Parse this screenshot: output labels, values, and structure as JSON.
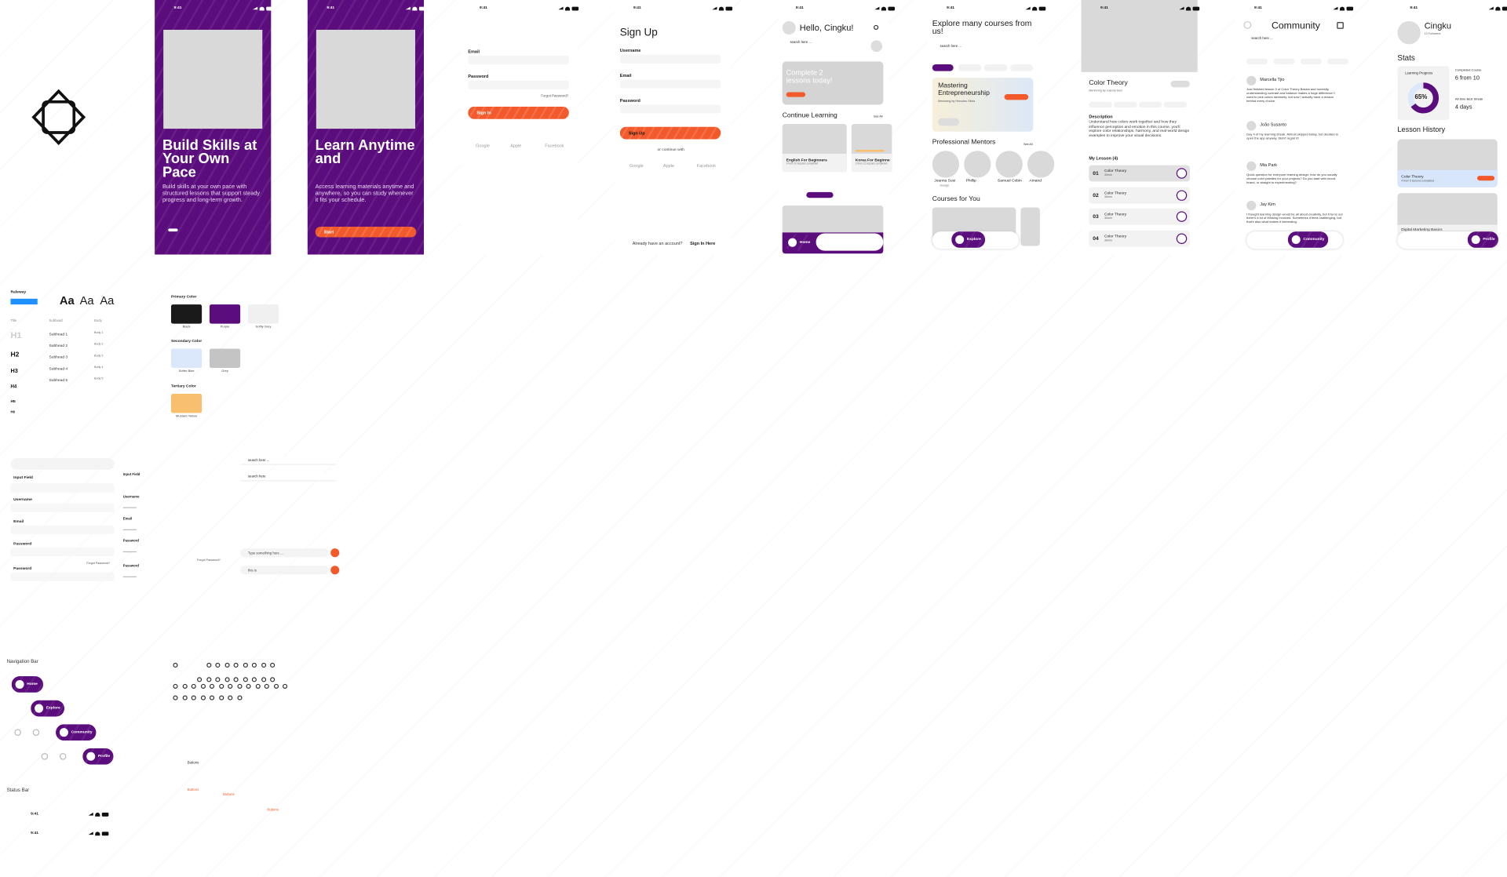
{
  "onboarding": [
    {
      "time": "9:41",
      "title": "Build Skills at Your Own Pace",
      "body": "Build skills at your own pace with structured lessons that support steady progress and long-term growth."
    },
    {
      "time": "9:41",
      "title": "Learn Anytime and",
      "body": "Access learning materials anytime and anywhere, so you can study whenever it fits your schedule.",
      "button": "Start"
    }
  ],
  "sign_in": {
    "time": "9:41",
    "email": "Email",
    "password": "Password",
    "forgot": "Forgot Password?",
    "button": "Sign In",
    "socials": [
      "Google",
      "Apple",
      "Facebook"
    ]
  },
  "sign_up": {
    "time": "9:41",
    "title": "Sign Up",
    "fields": [
      "Username",
      "Email",
      "Password"
    ],
    "button": "Sign Up",
    "divider": "or continue with",
    "socials": [
      "Google",
      "Apple",
      "Facebook"
    ],
    "footer": "Already have an account?",
    "footer_link": "Sign In Here"
  },
  "home": {
    "time": "9:41",
    "greeting": "Hello, Cingku!",
    "search": "search here ...",
    "banner": "Complete 2 lessons today!",
    "section": "Continue Learning",
    "see_all": "See All",
    "courses": [
      {
        "title": "English For Beginners",
        "meta": "3 from 10 lessons completed"
      },
      {
        "title": "Korea For Beginne",
        "meta": "2 from 12 lessons completed"
      }
    ],
    "nav": "Home"
  },
  "explore": {
    "time": "9:41",
    "title": "Explore many courses from us!",
    "search": "search here ...",
    "featured_title": "Mastering Entrepreneurship",
    "featured_meta": "Mentoring by Hercules Olivia",
    "mentors_title": "Professional Mentors",
    "see_all": "See All",
    "mentors": [
      {
        "name": "Joanna Susi",
        "role": "Design"
      },
      {
        "name": "Phillip"
      },
      {
        "name": "Samuel Cobin"
      },
      {
        "name": "Amand"
      }
    ],
    "courses_title": "Courses for You",
    "nav": "Explore"
  },
  "course": {
    "time": "9:41",
    "title": "Color Theory",
    "mentor": "Mentoring by Joanna Susi",
    "description_title": "Description",
    "description": "Understand how colors work together and how they influence perception and emotion in this course. you'll explore color relationships, harmony, and real-world design examples to improve your visual decisions.",
    "lessons_title": "My Lesson (4)",
    "lessons": [
      {
        "number": "01",
        "title": "Color Theory",
        "duration": "30min"
      },
      {
        "number": "02",
        "title": "Color Theory",
        "duration": "30min"
      },
      {
        "number": "03",
        "title": "Color Theory",
        "duration": "30min"
      },
      {
        "number": "04",
        "title": "Color Theory",
        "duration": "30min"
      }
    ]
  },
  "community": {
    "time": "9:41",
    "title": "Community",
    "search": "search here ...",
    "posts": [
      {
        "name": "Marcella Tjio",
        "text": "Just finished lesson 3 of Color Theory Basics and honestly, understanding contrast and balance makes a huge difference! I used to pick colors randomly, but now I actually have a reason behind every choice."
      },
      {
        "name": "João Susanto",
        "text": "Day 4 of my learning streak. Almost skipped today, but decided to open the app anyway. Didn't regret it!"
      },
      {
        "name": "Mia Park",
        "text": "Quick question for everyone learning design: how do you usually choose color palettes for your projects? Do you start with mood, brand, or straight to experimenting?"
      },
      {
        "name": "Jay Kim",
        "text": "I thought learning design would be all about creativity, but it turns out there's a lot of thinking involved. Sometimes it feels challenging, but that's also what makes it interesting."
      }
    ],
    "nav": "Community"
  },
  "profile": {
    "time": "9:41",
    "name": "Cingku",
    "followers": "10 Followers",
    "stats_title": "Stats",
    "progress_title": "Learning Progress",
    "progress": {
      "value": 65,
      "label": "65%"
    },
    "completed_label": "Completed Course",
    "completed": "6 from 10",
    "streak_label": "All-time Best Streak",
    "streak": "4 days",
    "history_title": "Lesson History",
    "history": [
      {
        "title": "Color Theory",
        "meta": "4 from 5 lessons completed"
      },
      {
        "title": "Digital Marketing Basics"
      }
    ],
    "nav": "Profile"
  },
  "typography": {
    "font": "Raleway",
    "samples": [
      "Aa",
      "Aa",
      "Aa"
    ],
    "columns": [
      "Title",
      "Subhead",
      "Body"
    ],
    "titles": [
      "H1",
      "H2",
      "H3",
      "H4",
      "H5",
      "H6"
    ],
    "subheads": [
      "Subhead 1",
      "Subhead 2",
      "Subhead 3",
      "Subhead 4",
      "Subhead 5"
    ],
    "bodies": [
      "Body 1",
      "Body 2",
      "Body 3",
      "Body 4",
      "Body 5"
    ]
  },
  "colors": {
    "groups": [
      {
        "name": "Primary Color",
        "swatches": [
          {
            "name": "Black",
            "color": "#1a1a1a"
          },
          {
            "name": "Purple",
            "color": "#5b0d7d"
          },
          {
            "name": "Softly Grey",
            "color": "#f0f0f0"
          }
        ]
      },
      {
        "name": "Secondary Color",
        "swatches": [
          {
            "name": "Softer Blue",
            "color": "#dbe7fb"
          },
          {
            "name": "Grey",
            "color": "#c4c4c4"
          }
        ]
      },
      {
        "name": "Tertiary Color",
        "swatches": [
          {
            "name": "Mustard Yellow",
            "color": "#f8bf6e"
          }
        ]
      }
    ]
  },
  "inputs": {
    "label": "Input Field",
    "fields": [
      "Username",
      "Email",
      "Password",
      "Password"
    ],
    "small_label": "Input Field",
    "small_fields": [
      "Username",
      "Email",
      "Password",
      "Password"
    ],
    "forgot": "Forgot Password?",
    "forgot_2": "Forgot Password?",
    "search": [
      "search here ...",
      "search here"
    ],
    "chat": [
      "Type something here ...",
      "this is"
    ]
  },
  "navigation": {
    "title": "Navigation Bar",
    "items": [
      "Home",
      "Explore",
      "Community",
      "Profile"
    ]
  },
  "buttons": [
    "Buttons",
    "Buttons",
    "Buttons",
    "Buttons"
  ],
  "status_bar": {
    "title": "Status Bar",
    "times": [
      "9:41",
      "9:41"
    ]
  }
}
